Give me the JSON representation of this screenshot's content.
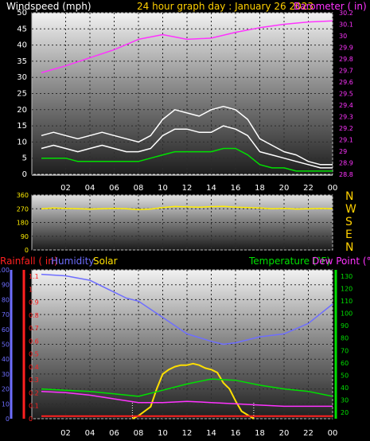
{
  "header": {
    "left_label": "Windspeed (mph)",
    "center_label": "24 hour graph day : January 26 2023",
    "right_label": "Barometer ( in)"
  },
  "compass": {
    "n": "N",
    "w": "W",
    "s": "S",
    "e": "E",
    "n2": "N"
  },
  "lower_labels": {
    "rainfall": "Rainfall ( in)",
    "humidity": "Humidity",
    "solar": "Solar",
    "temperature": "Temperature (°F)",
    "dewpoint": "Dew Point (°F)"
  },
  "colors": {
    "background": "#000000",
    "wind_label": "#ffffff",
    "date_label": "#ffd000",
    "barometer": "#ff33ff",
    "rain": "#ff2020",
    "humidity": "#6e6eff",
    "solar": "#ffe000",
    "temperature": "#00e000",
    "dewpoint": "#ff33ff"
  },
  "chart_data": [
    {
      "type": "line",
      "name": "wind-barometer",
      "x_ticks": [
        "02",
        "04",
        "06",
        "08",
        "10",
        "12",
        "14",
        "16",
        "18",
        "20",
        "22",
        "00"
      ],
      "y_left_ticks": [
        "0",
        "5",
        "10",
        "15",
        "20",
        "25",
        "30",
        "35",
        "40",
        "45",
        "50"
      ],
      "y_left_range": [
        0,
        50
      ],
      "y_right_ticks": [
        "28.8",
        "28.9",
        "29",
        "29.1",
        "29.2",
        "29.3",
        "29.4",
        "29.5",
        "29.6",
        "29.7",
        "29.8",
        "29.9",
        "30",
        "30.1",
        "30.2"
      ],
      "y_right_range": [
        28.8,
        30.2
      ],
      "series": [
        {
          "name": "Windspeed (mph)",
          "color": "#ffffff",
          "x": [
            0,
            1,
            2,
            3,
            4,
            5,
            6,
            7,
            8,
            9,
            10,
            11,
            12,
            13,
            14,
            15,
            16,
            17,
            18,
            19,
            20,
            21,
            22,
            23,
            24
          ],
          "values": [
            8,
            9,
            8,
            7,
            8,
            9,
            8,
            7,
            7,
            8,
            12,
            14,
            14,
            13,
            13,
            15,
            14,
            12,
            7,
            6,
            5,
            4,
            3,
            2,
            2
          ]
        },
        {
          "name": "Gust (mph)",
          "color": "#ffffff",
          "x": [
            0,
            1,
            2,
            3,
            4,
            5,
            6,
            7,
            8,
            9,
            10,
            11,
            12,
            13,
            14,
            15,
            16,
            17,
            18,
            19,
            20,
            21,
            22,
            23,
            24
          ],
          "values": [
            12,
            13,
            12,
            11,
            12,
            13,
            12,
            11,
            10,
            12,
            17,
            20,
            19,
            18,
            20,
            21,
            20,
            17,
            11,
            9,
            7,
            6,
            4,
            3,
            3
          ]
        },
        {
          "name": "Average wind (mph)",
          "color": "#00e000",
          "x": [
            0,
            1,
            2,
            3,
            4,
            5,
            6,
            7,
            8,
            9,
            10,
            11,
            12,
            13,
            14,
            15,
            16,
            17,
            18,
            19,
            20,
            21,
            22,
            23,
            24
          ],
          "values": [
            5,
            5,
            5,
            4,
            4,
            4,
            4,
            4,
            4,
            5,
            6,
            7,
            7,
            7,
            7,
            8,
            8,
            6,
            3,
            2,
            2,
            1,
            1,
            1,
            1
          ]
        },
        {
          "name": "Barometer ( in)",
          "color": "#ff33ff",
          "x": [
            0,
            2,
            4,
            6,
            8,
            10,
            12,
            14,
            16,
            18,
            20,
            22,
            24
          ],
          "values": [
            29.68,
            29.74,
            29.81,
            29.88,
            29.97,
            30.01,
            29.97,
            29.98,
            30.03,
            30.07,
            30.1,
            30.12,
            30.13
          ]
        }
      ]
    },
    {
      "type": "line",
      "name": "wind-direction",
      "x_ticks": [
        "02",
        "04",
        "06",
        "08",
        "10",
        "12",
        "14",
        "16",
        "18",
        "20",
        "22",
        "00"
      ],
      "y_ticks": [
        "0",
        "90",
        "180",
        "270",
        "360"
      ],
      "y_range": [
        0,
        360
      ],
      "series": [
        {
          "name": "Wind direction",
          "color": "#ffee00",
          "x": [
            0,
            1,
            2,
            3,
            4,
            5,
            6,
            7,
            8,
            9,
            10,
            11,
            12,
            13,
            14,
            15,
            16,
            17,
            18,
            19,
            20,
            21,
            22,
            23,
            24
          ],
          "values": [
            270,
            275,
            272,
            270,
            268,
            270,
            272,
            270,
            265,
            268,
            278,
            285,
            282,
            280,
            284,
            286,
            280,
            278,
            275,
            270,
            272,
            268,
            270,
            272,
            270
          ]
        }
      ]
    },
    {
      "type": "line",
      "name": "rain-humidity-solar-temperature",
      "x_ticks": [
        "02",
        "04",
        "06",
        "08",
        "10",
        "12",
        "14",
        "16",
        "18",
        "20",
        "22",
        "00"
      ],
      "y_humidity_ticks": [
        "0",
        "10",
        "20",
        "30",
        "40",
        "50",
        "60",
        "70",
        "80",
        "90",
        "100"
      ],
      "y_humidity_range": [
        0,
        100
      ],
      "y_rain_ticks": [
        "0",
        "0.1",
        "0.2",
        "0.3",
        "0.4",
        "0.5",
        "0.6",
        "0.7",
        "0.8",
        "0.9",
        "1",
        "1.1"
      ],
      "y_rain_range": [
        0,
        1.15
      ],
      "y_temp_ticks": [
        "20",
        "30",
        "40",
        "50",
        "60",
        "70",
        "80",
        "90",
        "100",
        "110",
        "120",
        "130"
      ],
      "y_temp_range": [
        15,
        135
      ],
      "series": [
        {
          "name": "Humidity",
          "color": "#6e6eff",
          "axis": "humidity",
          "x": [
            0,
            2,
            4,
            6,
            7,
            8,
            10,
            12,
            14,
            15,
            16,
            18,
            20,
            22,
            24
          ],
          "values": [
            97,
            96,
            93,
            85,
            81,
            79,
            68,
            57,
            52,
            50,
            51,
            55,
            57,
            64,
            77
          ]
        },
        {
          "name": "Temperature",
          "color": "#00e000",
          "axis": "temp",
          "x": [
            0,
            2,
            4,
            6,
            8,
            10,
            12,
            14,
            16,
            18,
            20,
            22,
            24
          ],
          "values": [
            39,
            38,
            37,
            35,
            33,
            38,
            43,
            47,
            46,
            42,
            39,
            37,
            33
          ]
        },
        {
          "name": "Dew Point",
          "color": "#ff33ff",
          "axis": "temp",
          "x": [
            0,
            2,
            4,
            6,
            8,
            10,
            12,
            14,
            16,
            18,
            20,
            22,
            24
          ],
          "values": [
            37,
            36,
            34,
            31,
            28,
            28,
            29,
            28,
            27,
            26,
            25,
            25,
            25
          ]
        },
        {
          "name": "Rainfall",
          "color": "#ff2020",
          "axis": "rain",
          "x": [
            0,
            24
          ],
          "values": [
            0.02,
            0.02
          ]
        },
        {
          "name": "Solar",
          "color": "#ffe000",
          "axis": "humidity",
          "x": [
            7.5,
            8,
            9,
            9.5,
            10,
            10.5,
            11,
            11.5,
            12,
            12.5,
            13,
            13.5,
            14,
            14.5,
            15,
            15.5,
            16,
            16.5,
            17.5
          ],
          "values": [
            0,
            2,
            8,
            20,
            30,
            33,
            35,
            36,
            36,
            37,
            36,
            34,
            33,
            31,
            24,
            20,
            12,
            5,
            0
          ]
        }
      ]
    }
  ]
}
